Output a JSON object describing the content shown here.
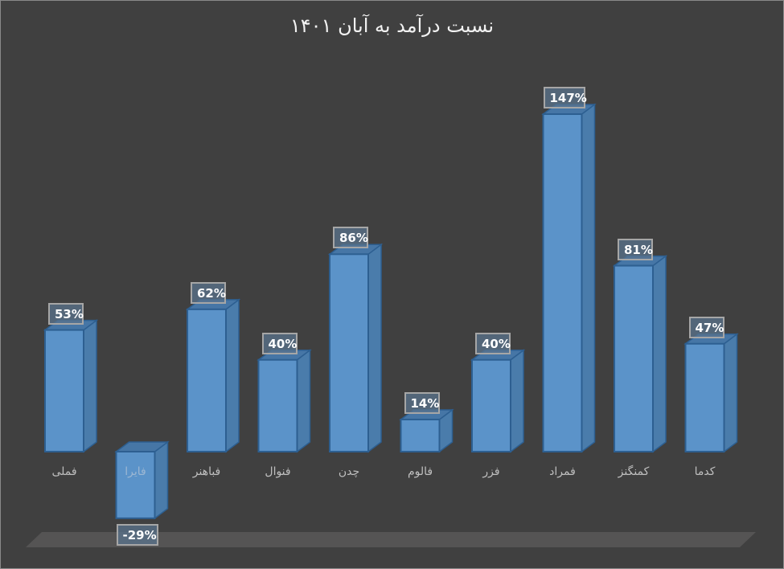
{
  "chart_data": {
    "type": "bar",
    "style": "3d-column",
    "title": "نسبت درآمد به آبان ۱۴۰۱",
    "xlabel": "",
    "ylabel": "",
    "categories": [
      "فملی",
      "فایرا",
      "فباهنر",
      "فنوال",
      "چدن",
      "فالوم",
      "فزر",
      "فمراد",
      "کمنگنز",
      "کدما"
    ],
    "values": [
      53,
      -29,
      62,
      40,
      86,
      14,
      40,
      147,
      81,
      47
    ],
    "value_labels": [
      "53%",
      "-29%",
      "62%",
      "40%",
      "86%",
      "14%",
      "40%",
      "147%",
      "81%",
      "47%"
    ],
    "unit": "%",
    "ylim": [
      -29,
      147
    ],
    "grid": false,
    "legend": "none",
    "colors": {
      "bar_fill": "#5b93c9",
      "bar_side": "#4a7cab",
      "bar_top": "#4676a6",
      "bar_border": "#2d5f91",
      "background": "#404040",
      "floor": "#555454",
      "title_color": "#f2f2f2",
      "label_color": "#bfbfbf"
    }
  }
}
